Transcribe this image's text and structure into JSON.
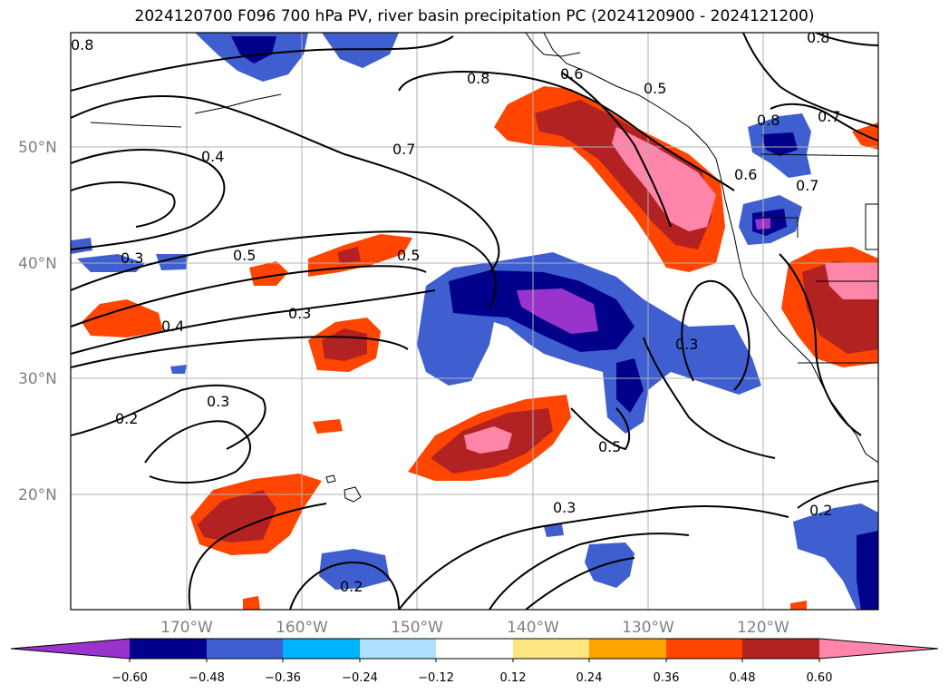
{
  "title": "2024120700 F096 700 hPa PV, river basin precipitation PC (2024120900 - 2024121200)",
  "lat_labels": [
    "50°N",
    "40°N",
    "30°N",
    "20°N"
  ],
  "lon_labels": [
    "170°W",
    "160°W",
    "150°W",
    "140°W",
    "130°W",
    "120°W"
  ],
  "colorbar": {
    "ticks": [
      "−0.60",
      "−0.48",
      "−0.36",
      "−0.24",
      "−0.12",
      "0.12",
      "0.24",
      "0.36",
      "0.48",
      "0.60"
    ],
    "colors": [
      "#9933cc",
      "#00008b",
      "#3f5fd0",
      "#00b3ff",
      "#aee0ff",
      "#ffffff",
      "#ffe680",
      "#ffa500",
      "#ff4500",
      "#b22222",
      "#ff85aa"
    ]
  },
  "contour_labels": [
    "0.8",
    "0.8",
    "0.6",
    "0.5",
    "0.8",
    "0.7",
    "0.8",
    "0.4",
    "0.7",
    "0.6",
    "0.7",
    "0.3",
    "0.5",
    "0.5",
    "0.3",
    "0.4",
    "0.3",
    "0.3",
    "0.2",
    "0.5",
    "0.3",
    "0.2",
    "0.2"
  ]
}
